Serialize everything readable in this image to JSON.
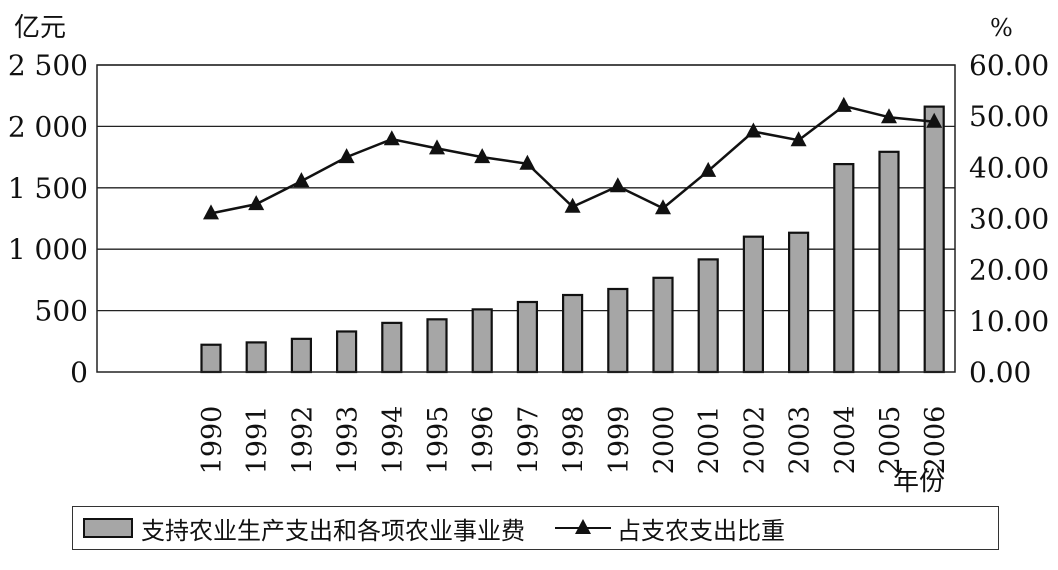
{
  "chart_data": {
    "type": "bar",
    "categories": [
      "1990",
      "1991",
      "1992",
      "1993",
      "1994",
      "1995",
      "1996",
      "1997",
      "1998",
      "1999",
      "2000",
      "2001",
      "2002",
      "2003",
      "2004",
      "2005",
      "2006"
    ],
    "series": [
      {
        "name": "支持农业生产支出和各项农业事业费",
        "type": "bar",
        "axis": "left",
        "color": "#a6a6a6",
        "values": [
          222,
          241,
          270,
          330,
          400,
          429,
          510,
          570,
          627,
          676,
          767,
          917,
          1102,
          1134,
          1693,
          1793,
          2161
        ]
      },
      {
        "name": "占支农支出比重",
        "type": "line",
        "axis": "right",
        "marker": "triangle",
        "color": "#111111",
        "values": [
          31.0,
          32.8,
          37.3,
          42.0,
          45.5,
          43.7,
          42.0,
          40.7,
          32.3,
          36.3,
          32.0,
          39.3,
          47.0,
          45.3,
          52.0,
          49.8,
          48.9
        ]
      }
    ],
    "left_axis": {
      "unit": "亿元",
      "ylim": [
        0,
        2500
      ],
      "ticks": [
        0,
        500,
        1000,
        1500,
        2000,
        2500
      ],
      "tick_labels": [
        "0",
        "500",
        "1 000",
        "1 500",
        "2 000",
        "2 500"
      ]
    },
    "right_axis": {
      "unit": "%",
      "ylim": [
        0,
        60
      ],
      "ticks": [
        0,
        10,
        20,
        30,
        40,
        50,
        60
      ],
      "tick_labels": [
        "0.00",
        "10.00",
        "20.00",
        "30.00",
        "40.00",
        "50.00",
        "60.00"
      ]
    },
    "xlabel": "年份",
    "grid": "horizontal",
    "legend_position": "bottom"
  }
}
